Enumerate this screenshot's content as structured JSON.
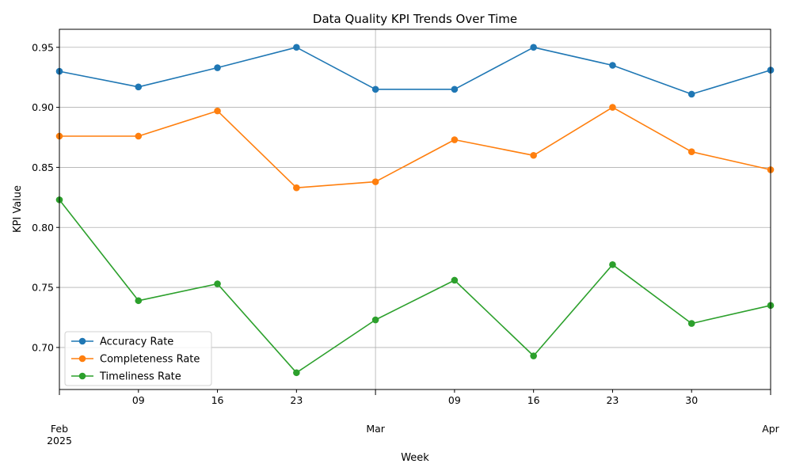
{
  "chart_data": {
    "type": "line",
    "title": "Data Quality KPI Trends Over Time",
    "xlabel": "Week",
    "ylabel": "KPI Value",
    "x": [
      "2025-02-02",
      "2025-02-09",
      "2025-02-16",
      "2025-02-23",
      "2025-03-02",
      "2025-03-09",
      "2025-03-16",
      "2025-03-23",
      "2025-03-30",
      "2025-04-06"
    ],
    "x_ticks": [
      {
        "x": "2025-02-02",
        "label": "Feb",
        "sublabel": "2025",
        "major": true
      },
      {
        "x": "2025-02-09",
        "label": "09",
        "sublabel": "",
        "major": false
      },
      {
        "x": "2025-02-16",
        "label": "16",
        "sublabel": "",
        "major": false
      },
      {
        "x": "2025-02-23",
        "label": "23",
        "sublabel": "",
        "major": false
      },
      {
        "x": "2025-03-02",
        "label": "Mar",
        "sublabel": "",
        "major": true
      },
      {
        "x": "2025-03-09",
        "label": "09",
        "sublabel": "",
        "major": false
      },
      {
        "x": "2025-03-16",
        "label": "16",
        "sublabel": "",
        "major": false
      },
      {
        "x": "2025-03-23",
        "label": "23",
        "sublabel": "",
        "major": false
      },
      {
        "x": "2025-03-30",
        "label": "30",
        "sublabel": "",
        "major": false
      },
      {
        "x": "2025-04-06",
        "label": "Apr",
        "sublabel": "",
        "major": true
      }
    ],
    "ylim": [
      0.665,
      0.965
    ],
    "y_ticks": [
      0.7,
      0.75,
      0.8,
      0.85,
      0.9,
      0.95
    ],
    "y_tick_labels": [
      "0.70",
      "0.75",
      "0.80",
      "0.85",
      "0.90",
      "0.95"
    ],
    "grid": true,
    "legend_position": "lower-left",
    "series": [
      {
        "name": "Accuracy Rate",
        "color": "#1f77b4",
        "values": [
          0.93,
          0.917,
          0.933,
          0.95,
          0.915,
          0.915,
          0.95,
          0.935,
          0.911,
          0.931
        ]
      },
      {
        "name": "Completeness Rate",
        "color": "#ff7f0e",
        "values": [
          0.876,
          0.876,
          0.897,
          0.833,
          0.838,
          0.873,
          0.86,
          0.9,
          0.863,
          0.848
        ]
      },
      {
        "name": "Timeliness Rate",
        "color": "#2ca02c",
        "values": [
          0.823,
          0.739,
          0.753,
          0.679,
          0.723,
          0.756,
          0.693,
          0.769,
          0.72,
          0.735
        ]
      }
    ]
  }
}
